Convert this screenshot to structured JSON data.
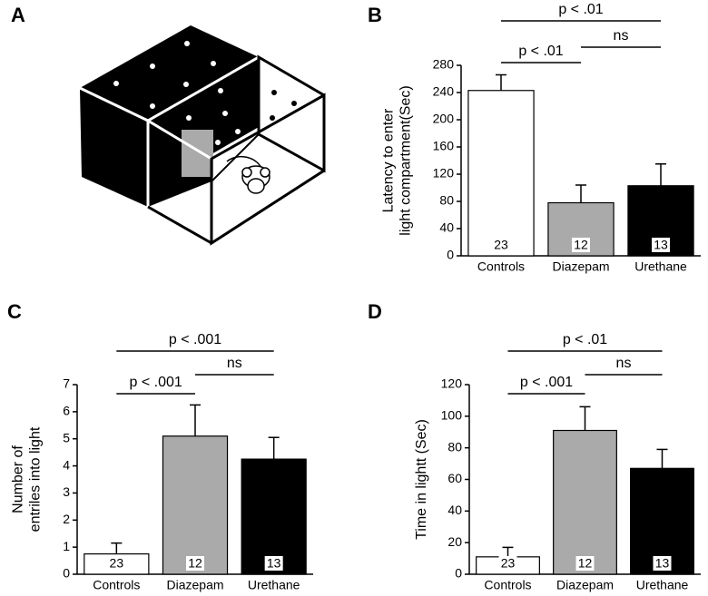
{
  "diagram_label": "A",
  "chart_data": [
    {
      "type": "bar",
      "panel": "B",
      "ylabel": [
        "Latency to enter",
        "light compartment(Sec)"
      ],
      "categories": [
        "Controls",
        "Diazepam",
        "Urethane"
      ],
      "values": [
        243,
        78,
        103
      ],
      "errors": [
        23,
        26,
        32
      ],
      "n": [
        23,
        12,
        13
      ],
      "colors": [
        "#ffffff",
        "#aaaaaa",
        "#000000"
      ],
      "ylim": [
        0,
        280
      ],
      "yticks": [
        0,
        40,
        80,
        120,
        160,
        200,
        240,
        280
      ],
      "brackets": [
        "p < .01",
        "p < .01",
        "ns"
      ]
    },
    {
      "type": "bar",
      "panel": "C",
      "ylabel": [
        "Number of",
        "entriles into light"
      ],
      "categories": [
        "Controls",
        "Diazepam",
        "Urethane"
      ],
      "values": [
        0.75,
        5.1,
        4.25
      ],
      "errors": [
        0.4,
        1.15,
        0.8
      ],
      "n": [
        23,
        12,
        13
      ],
      "colors": [
        "#ffffff",
        "#aaaaaa",
        "#000000"
      ],
      "ylim": [
        0,
        7
      ],
      "yticks": [
        0,
        1,
        2,
        3,
        4,
        5,
        6,
        7
      ],
      "brackets": [
        "p < .001",
        "p < .001",
        "ns"
      ]
    },
    {
      "type": "bar",
      "panel": "D",
      "ylabel": [
        "Time in lightt (Sec)"
      ],
      "categories": [
        "Controls",
        "Diazepam",
        "Urethane"
      ],
      "values": [
        11,
        91,
        67
      ],
      "errors": [
        6,
        15,
        12
      ],
      "n": [
        23,
        12,
        13
      ],
      "colors": [
        "#ffffff",
        "#aaaaaa",
        "#000000"
      ],
      "ylim": [
        0,
        120
      ],
      "yticks": [
        0,
        20,
        40,
        60,
        80,
        100,
        120
      ],
      "brackets": [
        "p < .01",
        "p < .001",
        "ns"
      ]
    }
  ]
}
